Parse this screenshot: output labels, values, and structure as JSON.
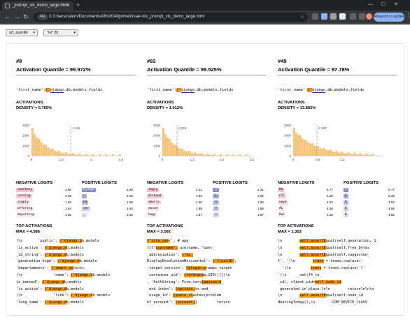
{
  "browser": {
    "tab_title": "_prompt_vis_demo_large.html",
    "info_label": "File",
    "url": "C:/Users/calum/Documents/AI%20Alignment/sae-vis/_prompt_vis_demo_large.html",
    "relaunch_label": "Relaunch to update"
  },
  "controls": {
    "metric_select": "act_quantile",
    "token_select": "\"Gt\" (5)"
  },
  "columns": [
    {
      "header": "#8",
      "quantile": "Activation Quantile = 99.972%",
      "prompt_pre": "'first_name':",
      "prompt_hl": "('",
      "prompt_word": "django",
      "prompt_post": ".db.models.fields",
      "activations_title": "ACTIVATIONS",
      "density": "DENSITY = 0.755%",
      "hist_yticks": [
        "3000",
        "2000",
        "1000",
        "0"
      ],
      "hist_xticks": [
        "0",
        "1.5",
        "3",
        "4.5"
      ],
      "hist_marker": "1.129",
      "neg_title": "NEGATIVE LOGITS",
      "pos_title": "POSITIVE LOGITS",
      "neg": [
        [
          "courtesy",
          "2.80"
        ],
        [
          "costing",
          "2.02"
        ],
        [
          "simply",
          "1.98"
        ],
        [
          "offering",
          "1.94"
        ],
        [
          "departing",
          "1.85"
        ]
      ],
      "pos": [
        [
          "Django",
          "2.80"
        ],
        [
          "_",
          "2.02"
        ],
        [
          "CS",
          "1.98"
        ],
        [
          "ser",
          "1.94"
        ],
        [
          "_",
          "1.85"
        ]
      ],
      "top_title": "TOP ACTIVATIONS",
      "top_max": "MAX = 4.586",
      "lines": [
        ")\\n       'public': ('django.db.models",
        "'is_active': ('django.db.models",
        "_id_string': ('django.db.models",
        "'generation_high': ('django.db.models",
        "'departamento': ('smart_selects.",
        ")\\n              'name': ('django.db.models",
        "is_banned': ('django.db.models",
        "'is_active': ('django.db.models",
        ")\\n              'link': ('django.db.models",
        "'long_name': ('django.db.models"
      ]
    },
    {
      "header": "#83",
      "quantile": "Activation Quantile = 99.525%",
      "prompt_pre": "'first_name':",
      "prompt_hl": "('",
      "prompt_word": "django",
      "prompt_post": ".db.models.fields",
      "activations_title": "ACTIVATIONS",
      "density": "DENSITY = 1.012%",
      "hist_yticks": [
        "3000",
        "2000",
        "1000",
        "0"
      ],
      "hist_xticks": [
        "0",
        "1.1",
        "2.2",
        "3.3"
      ],
      "hist_marker": "0.228",
      "neg_title": "NEGATIVE LOGITS",
      "pos_title": "POSITIVE LOGITS",
      "neg": [
        [
          "ingly",
          "2.21"
        ],
        [
          "alibaud",
          "1.92"
        ],
        [
          "ameris",
          "1.90"
        ],
        [
          "oused",
          "1.88"
        ],
        [
          "hogy",
          "1.87"
        ]
      ],
      "pos": [
        [
          "]}",
          "2.21"
        ],
        [
          "},",
          "1.92"
        ],
        [
          "}}",
          "1.90"
        ],
        [
          "]}",
          "1.88"
        ],
        [
          "]]",
          "1.87"
        ]
      ],
      "top_title": "TOP ACTIVATIONS",
      "top_max": "MAX = 3.592",
      "lines": [
        "{'site_user', # app",
        "t\\t\"username\": username, \"user_",
        "_abbreviation': ('nu_",
        "DisplayResolutionHorizontal': ('float16',",
        "_target_version': [plugin.gramps_target",
        "'container_uid': [reference.UID()]})\\n",
        ", 'AuthString': Form.vars[password_",
        "_end_index': [options.ts_end_",
        "'usage_id': [quote_slashes(problem",
        "kf_account': [account]}         return"
      ]
    },
    {
      "header": "#49",
      "quantile": "Activation Quantile = 97.78%",
      "prompt_pre": "'first_name':",
      "prompt_hl": "('",
      "prompt_word": "django",
      "prompt_post": ".db.models.fields",
      "activations_title": "ACTIVATIONS",
      "density": "DENSITY = 13.882%",
      "hist_yticks": [
        "3000",
        "2000",
        "1000",
        "0"
      ],
      "hist_xticks": [
        "0",
        "0.6",
        "1.2"
      ],
      "hist_marker": "0.193",
      "neg_title": "NEGATIVE LOGITS",
      "pos_title": "POSITIVE LOGITS",
      "neg": [
        [
          "Mo",
          "5.77"
        ],
        [
          "CTC",
          "5.26"
        ],
        [
          "ueye",
          "4.62"
        ],
        [
          "AL",
          "4.56"
        ],
        [
          "Bac",
          "4.55"
        ]
      ],
      "pos": [
        [
          "R",
          "5.77"
        ],
        [
          "E",
          "5.26"
        ],
        [
          "S",
          "4.62"
        ],
        [
          "E",
          "4.56"
        ],
        [
          "B",
          "4.55"
        ]
      ],
      "top_title": "TOP ACTIVATIONS",
      "top_max": "MAX = 1.302",
      "lines": [
        "\\n        self.assertEqual(self.generation, 1",
        "\\n        self.assertEqual(self.free_bytes",
        "\\n        self.assertEqual(self.suggested_",
        "f', ')\\n        trans = trans.replace('",
        "  ')\\n         trans = trans.replace('\\'",
        "')\\n    __not(f4_to_",
        "_id), client_uid=self.node_id",
        " generated in place.\\n\\n        return\\n\\n\\n",
        "\\n        self.assertEqual(self.node_id",
        "HeatingToday(),\\n        COM_DEVICE_CLASS"
      ]
    }
  ]
}
